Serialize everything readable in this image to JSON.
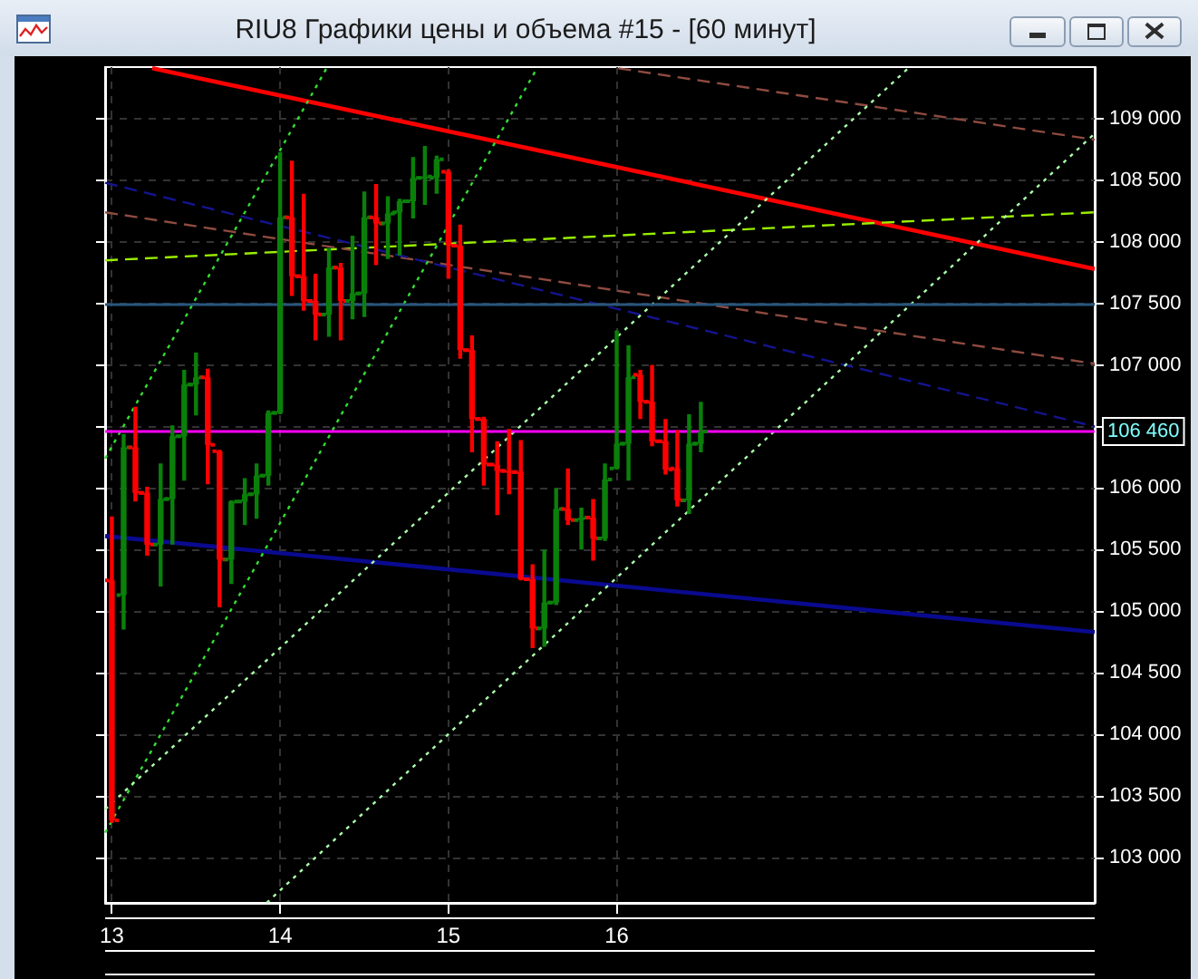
{
  "chart_data": {
    "type": "candlestick",
    "title": "RIU8 Графики цены и объема #15 - [60 минут]",
    "x": [
      13,
      13.07,
      13.14,
      13.21,
      13.29,
      13.36,
      13.43,
      13.5,
      13.57,
      13.64,
      13.71,
      13.79,
      13.86,
      13.93,
      14,
      14.07,
      14.14,
      14.21,
      14.29,
      14.36,
      14.43,
      14.5,
      14.57,
      14.64,
      14.71,
      14.79,
      14.86,
      14.93,
      15,
      15.07,
      15.14,
      15.21,
      15.29,
      15.36,
      15.43,
      15.5,
      15.57,
      15.64,
      15.71,
      15.79,
      15.86,
      15.93,
      16,
      16.07,
      16.14,
      16.21,
      16.29,
      16.36,
      16.43,
      16.5
    ],
    "ohlc": [
      [
        105250,
        105770,
        103280,
        103300
      ],
      [
        105130,
        106440,
        104850,
        106330
      ],
      [
        106330,
        106660,
        105890,
        105960
      ],
      [
        105960,
        106010,
        105450,
        105540
      ],
      [
        105540,
        106200,
        105200,
        105910
      ],
      [
        105910,
        106510,
        105540,
        106420
      ],
      [
        106420,
        106960,
        106060,
        106840
      ],
      [
        106840,
        107100,
        106590,
        106900
      ],
      [
        106900,
        106970,
        106030,
        106350
      ],
      [
        106300,
        106310,
        105030,
        105420
      ],
      [
        105420,
        105900,
        105220,
        105890
      ],
      [
        105890,
        106080,
        105700,
        105950
      ],
      [
        105950,
        106200,
        105750,
        106100
      ],
      [
        106100,
        106630,
        106020,
        106610
      ],
      [
        106610,
        108730,
        106600,
        108200
      ],
      [
        108200,
        108660,
        107560,
        107720
      ],
      [
        107720,
        108390,
        107440,
        107520
      ],
      [
        107520,
        107740,
        107200,
        107410
      ],
      [
        107410,
        107950,
        107230,
        107790
      ],
      [
        107790,
        107830,
        107200,
        107520
      ],
      [
        107520,
        108050,
        107370,
        107580
      ],
      [
        107580,
        108410,
        107390,
        108200
      ],
      [
        108200,
        108470,
        107810,
        108150
      ],
      [
        108150,
        108370,
        107860,
        108230
      ],
      [
        108240,
        108350,
        107890,
        108330
      ],
      [
        108330,
        108690,
        108190,
        108520
      ],
      [
        108520,
        108780,
        108300,
        108530
      ],
      [
        108520,
        108700,
        108390,
        108670
      ],
      [
        108570,
        108590,
        107700,
        107970
      ],
      [
        107970,
        108140,
        107050,
        107120
      ],
      [
        107120,
        107240,
        106290,
        106560
      ],
      [
        106560,
        106580,
        106020,
        106190
      ],
      [
        106190,
        106380,
        105780,
        106140
      ],
      [
        106140,
        106480,
        105950,
        106130
      ],
      [
        106130,
        106390,
        105250,
        105260
      ],
      [
        105260,
        105380,
        104700,
        104860
      ],
      [
        104860,
        105500,
        104710,
        105070
      ],
      [
        105070,
        106000,
        105050,
        105830
      ],
      [
        105830,
        106160,
        105700,
        105740
      ],
      [
        105740,
        105840,
        105500,
        105760
      ],
      [
        105760,
        105910,
        105410,
        105590
      ],
      [
        105590,
        106200,
        105570,
        106070
      ],
      [
        106160,
        107280,
        106150,
        106360
      ],
      [
        106360,
        107160,
        106060,
        106900
      ],
      [
        106920,
        106960,
        106560,
        106700
      ],
      [
        106700,
        107000,
        106340,
        106380
      ],
      [
        106380,
        106560,
        106110,
        106150
      ],
      [
        106160,
        106470,
        105850,
        105900
      ],
      [
        105900,
        106600,
        105790,
        106360
      ],
      [
        106360,
        106700,
        106290,
        106460
      ]
    ],
    "colors": [
      "#ff0000",
      "#0a800a",
      "#ff0000",
      "#ff0000",
      "#0a800a",
      "#0a800a",
      "#0a800a",
      "#0a800a",
      "#ff0000",
      "#ff0000",
      "#0a800a",
      "#0a800a",
      "#0a800a",
      "#0a800a",
      "#0a800a",
      "#ff0000",
      "#ff0000",
      "#ff0000",
      "#0a800a",
      "#ff0000",
      "#0a800a",
      "#0a800a",
      "#ff0000",
      "#0a800a",
      "#0a800a",
      "#0a800a",
      "#0a800a",
      "#0a800a",
      "#ff0000",
      "#ff0000",
      "#ff0000",
      "#ff0000",
      "#ff0000",
      "#ff0000",
      "#ff0000",
      "#ff0000",
      "#0a800a",
      "#0a800a",
      "#ff0000",
      "#0a800a",
      "#ff0000",
      "#0a800a",
      "#0a800a",
      "#0a800a",
      "#ff0000",
      "#ff0000",
      "#ff0000",
      "#ff0000",
      "#0a800a",
      "#0a800a"
    ],
    "series": [
      {
        "type": "line",
        "x": [
          13.24,
          18.84
        ],
        "values": [
          109410,
          107780
        ],
        "color": "#ff0000",
        "line_style": "solid"
      },
      {
        "type": "line",
        "x": [
          12.96,
          18.84
        ],
        "values": [
          107850,
          108240
        ],
        "color": "#99ee00",
        "line_style": "dashed"
      },
      {
        "type": "line",
        "x": [
          16.01,
          18.84
        ],
        "values": [
          109410,
          108830
        ],
        "color": "#8f4b40",
        "line_style": "dashed"
      },
      {
        "type": "line",
        "x": [
          12.96,
          18.84
        ],
        "values": [
          108240,
          107010
        ],
        "color": "#8f4b40",
        "line_style": "dashed"
      },
      {
        "type": "line",
        "x": [
          12.96,
          18.84
        ],
        "values": [
          108480,
          106500
        ],
        "color": "#14148f",
        "line_style": "dashed"
      },
      {
        "type": "line",
        "x": [
          12.96,
          18.84
        ],
        "values": [
          105610,
          104830
        ],
        "color": "#0a0a90",
        "line_style": "solid"
      },
      {
        "type": "line",
        "x": [
          12.96,
          14.28
        ],
        "values": [
          106240,
          109420
        ],
        "color": "#33dd33",
        "line_style": "dotted"
      },
      {
        "type": "line",
        "x": [
          12.96,
          15.53
        ],
        "values": [
          103200,
          109420
        ],
        "color": "#33dd33",
        "line_style": "dotted"
      },
      {
        "type": "line",
        "x": [
          12.96,
          17.74
        ],
        "values": [
          103390,
          109420
        ],
        "color": "#aaffaa",
        "line_style": "dotted"
      },
      {
        "type": "line",
        "x": [
          13.92,
          18.84
        ],
        "values": [
          102630,
          108880
        ],
        "color": "#aaffaa",
        "line_style": "dotted"
      }
    ],
    "ref_lines": [
      {
        "axis": "y",
        "value": 106460,
        "label": "106 460",
        "color": "#ff00ff",
        "line_style": "solid"
      },
      {
        "axis": "y",
        "value": 107500,
        "color": "#29567e",
        "line_style": "solid"
      }
    ],
    "xlim": [
      12.96,
      18.84
    ],
    "xticks": [
      13,
      14,
      15,
      16
    ],
    "ylim": [
      102630,
      109420
    ],
    "yticks": [
      {
        "value": 103000,
        "label": "103 000"
      },
      {
        "value": 103500,
        "label": "103 500"
      },
      {
        "value": 104000,
        "label": "104 000"
      },
      {
        "value": 104500,
        "label": "104 500"
      },
      {
        "value": 105000,
        "label": "105 000"
      },
      {
        "value": 105500,
        "label": "105 500"
      },
      {
        "value": 106000,
        "label": "106 000"
      },
      {
        "value": 106500,
        "label": null
      },
      {
        "value": 107000,
        "label": "107 000"
      },
      {
        "value": 107500,
        "label": "107 500"
      },
      {
        "value": 108000,
        "label": "108 000"
      },
      {
        "value": 108500,
        "label": "108 500"
      },
      {
        "value": 109000,
        "label": "109 000"
      }
    ],
    "grid": true
  }
}
